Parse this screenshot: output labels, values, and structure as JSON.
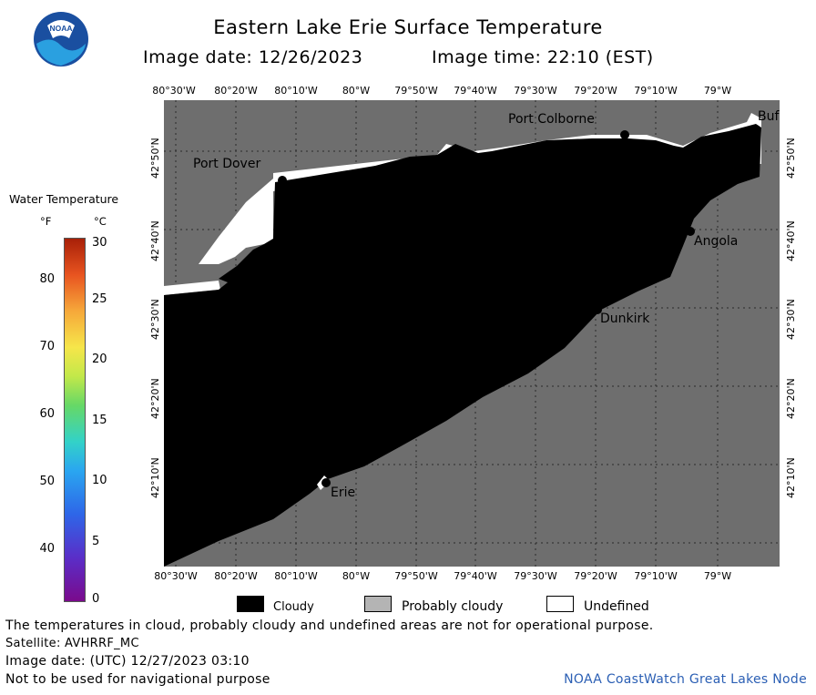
{
  "header": {
    "title": "Eastern Lake Erie Surface Temperature",
    "image_date": "Image date: 12/26/2023",
    "image_time": "Image time: 22:10 (EST)",
    "logo_text": "NOAA"
  },
  "axes": {
    "lon_labels": [
      "80°30'W",
      "80°20'W",
      "80°10'W",
      "80°W",
      "79°50'W",
      "79°40'W",
      "79°30'W",
      "79°20'W",
      "79°10'W",
      "79°W"
    ],
    "lat_labels": [
      "42°50'N",
      "42°40'N",
      "42°30'N",
      "42°20'N",
      "42°10'N"
    ]
  },
  "places": {
    "port_colborne": "Port Colborne",
    "buffalo": "Buf",
    "port_dover": "Port Dover",
    "angola": "Angola",
    "dunkirk": "Dunkirk",
    "erie": "Erie"
  },
  "colorbar": {
    "title": "Water Temperature",
    "unit_f": "°F",
    "unit_c": "°C",
    "f_ticks": [
      "80",
      "70",
      "60",
      "50",
      "40"
    ],
    "c_ticks": [
      "30",
      "25",
      "20",
      "15",
      "10",
      "5",
      "0"
    ]
  },
  "legend": {
    "cloudy": "Cloudy",
    "probably_cloudy": "Probably cloudy",
    "undefined": "Undefined",
    "colors": {
      "cloudy": "#000000",
      "probably_cloudy": "#b4b4b4",
      "undefined": "#ffffff"
    }
  },
  "footer": {
    "disclaimer": "The temperatures in cloud, probably cloudy and undefined areas are not for operational purpose.",
    "satellite": "Satellite: AVHRRF_MC",
    "utc_date": "Image date: (UTC) 12/27/2023  03:10",
    "navigation": "Not to be used for navigational purpose",
    "credit": "NOAA CoastWatch Great Lakes Node"
  },
  "colors": {
    "land": "#6e6e6e",
    "cloud": "#000000",
    "credit": "#2b5fb4"
  }
}
